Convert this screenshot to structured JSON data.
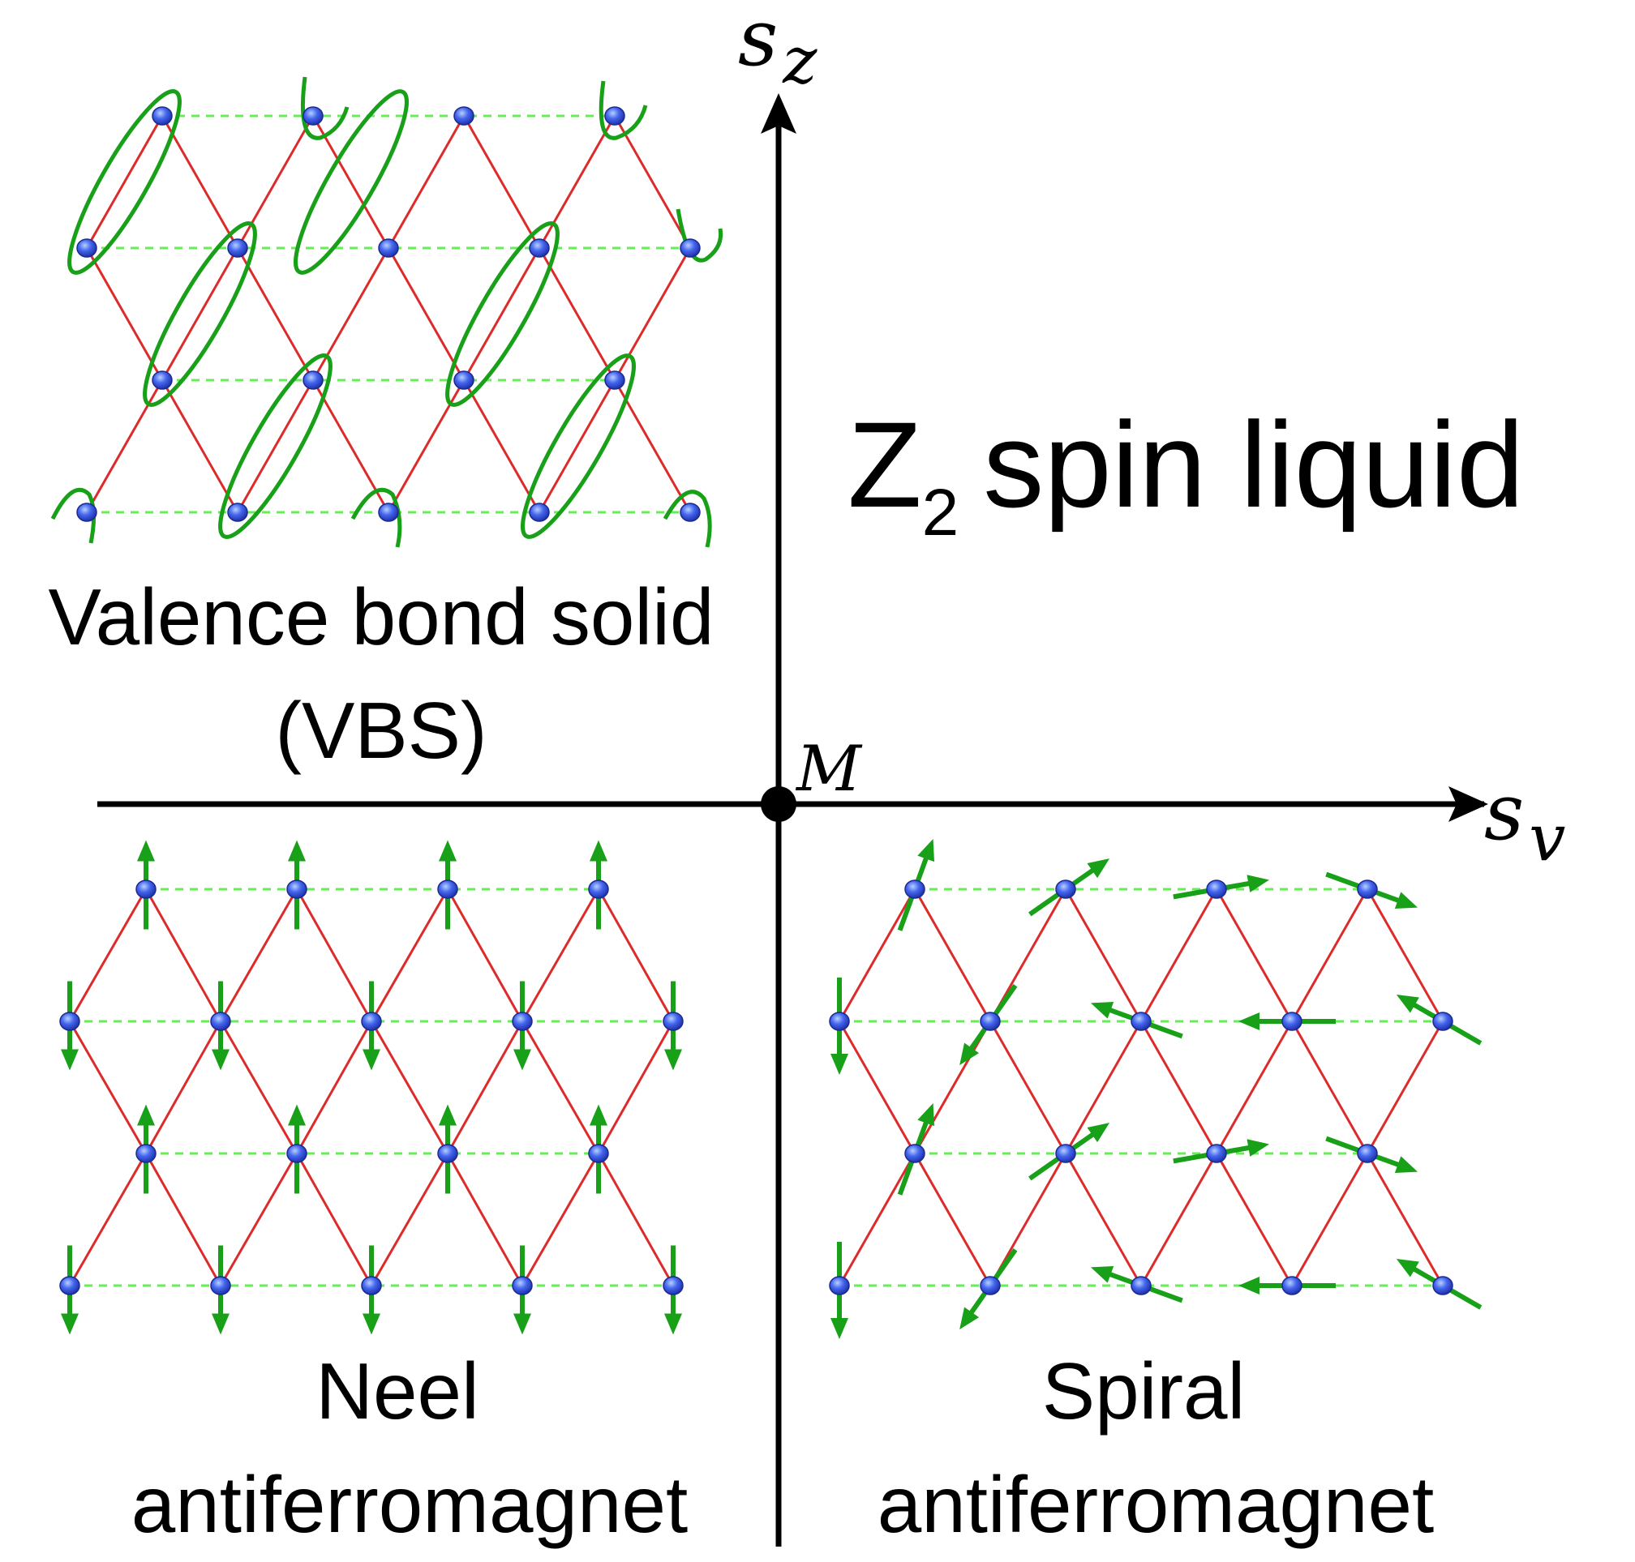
{
  "axes": {
    "vertical_label": "s",
    "vertical_subscript": "z",
    "horizontal_label": "s",
    "horizontal_subscript": "v",
    "origin_label": "M"
  },
  "phases": {
    "z2": {
      "main": "Z",
      "subscript": "2",
      "rest": "spin liquid"
    },
    "vbs": {
      "line1": "Valence bond solid",
      "line2": "(VBS)"
    },
    "neel": {
      "line1": "Neel",
      "line2": "antiferromagnet"
    },
    "spiral": {
      "line1": "Spiral",
      "line2": "antiferromagnet"
    }
  },
  "colors": {
    "bond": "#dd2a2a",
    "dashed": "#66ee55",
    "site": "#3355dd",
    "site_highlight": "#9ab8ff",
    "spin": "#18a018",
    "axis": "#000000"
  }
}
